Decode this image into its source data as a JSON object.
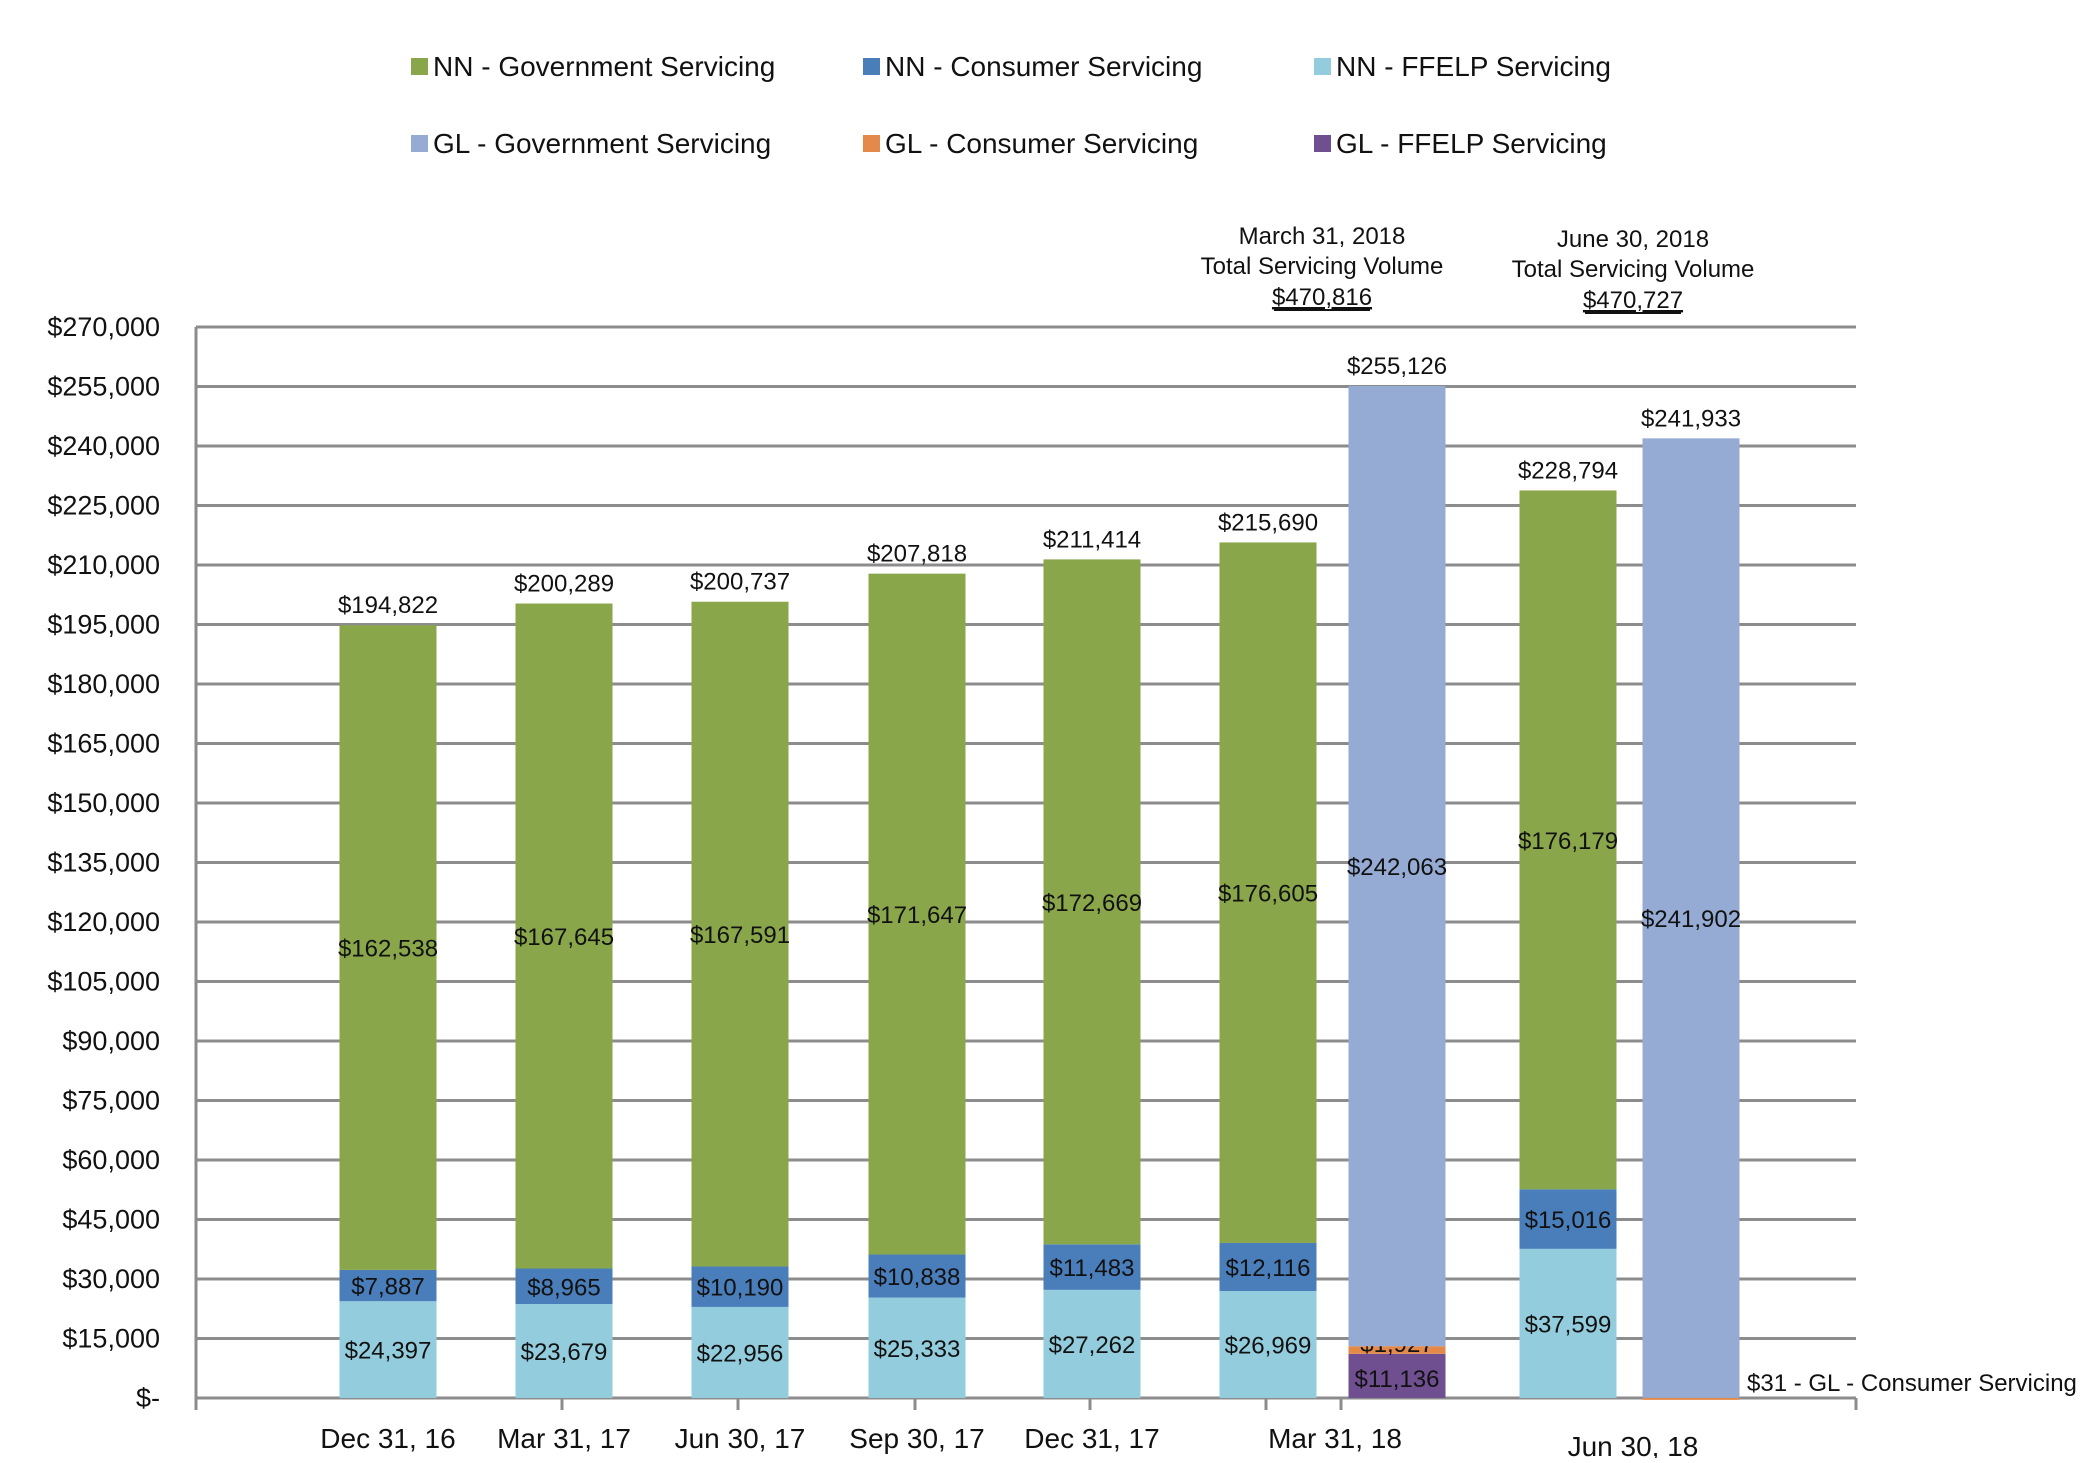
{
  "chart_data": {
    "type": "bar",
    "stacked": true,
    "title": "",
    "xlabel": "",
    "ylabel": "",
    "ylim": [
      0,
      270000
    ],
    "yticks": [
      0,
      15000,
      30000,
      45000,
      60000,
      75000,
      90000,
      105000,
      120000,
      135000,
      150000,
      165000,
      180000,
      195000,
      210000,
      225000,
      240000,
      255000,
      270000
    ],
    "ytick_labels": [
      "$-",
      "$15,000",
      "$30,000",
      "$45,000",
      "$60,000",
      "$75,000",
      "$90,000",
      "$105,000",
      "$120,000",
      "$135,000",
      "$150,000",
      "$165,000",
      "$180,000",
      "$195,000",
      "$210,000",
      "$225,000",
      "$240,000",
      "$255,000",
      "$270,000"
    ],
    "grid": true,
    "legend_placement": "top",
    "legend": [
      {
        "key": "nn_gov",
        "name": "NN - Government Servicing",
        "color": "#8aa64b"
      },
      {
        "key": "nn_con",
        "name": "NN - Consumer Servicing",
        "color": "#4a7ebb"
      },
      {
        "key": "nn_ffelp",
        "name": "NN - FFELP Servicing",
        "color": "#93cddd"
      },
      {
        "key": "gl_gov",
        "name": "GL - Government Servicing",
        "color": "#95abd3"
      },
      {
        "key": "gl_con",
        "name": "GL - Consumer Servicing",
        "color": "#e3894a"
      },
      {
        "key": "gl_ffelp",
        "name": "GL - FFELP Servicing",
        "color": "#6f4f8f"
      }
    ],
    "categories": [
      "Dec 31, 16",
      "Mar 31, 17",
      "Jun 30, 17",
      "Sep 30, 17",
      "Dec 31, 17",
      "Mar 31, 18",
      "Jun 30, 18"
    ],
    "bars": [
      {
        "category": "Dec 31, 16",
        "total": 194822,
        "total_label": "$194,822",
        "segments": [
          {
            "key": "nn_ffelp",
            "value": 24397,
            "label": "$24,397"
          },
          {
            "key": "nn_con",
            "value": 7887,
            "label": "$7,887"
          },
          {
            "key": "nn_gov",
            "value": 162538,
            "label": "$162,538"
          }
        ]
      },
      {
        "category": "Mar 31, 17",
        "total": 200289,
        "total_label": "$200,289",
        "segments": [
          {
            "key": "nn_ffelp",
            "value": 23679,
            "label": "$23,679"
          },
          {
            "key": "nn_con",
            "value": 8965,
            "label": "$8,965"
          },
          {
            "key": "nn_gov",
            "value": 167645,
            "label": "$167,645"
          }
        ]
      },
      {
        "category": "Jun 30, 17",
        "total": 200737,
        "total_label": "$200,737",
        "segments": [
          {
            "key": "nn_ffelp",
            "value": 22956,
            "label": "$22,956"
          },
          {
            "key": "nn_con",
            "value": 10190,
            "label": "$10,190"
          },
          {
            "key": "nn_gov",
            "value": 167591,
            "label": "$167,591"
          }
        ]
      },
      {
        "category": "Sep 30, 17",
        "total": 207818,
        "total_label": "$207,818",
        "segments": [
          {
            "key": "nn_ffelp",
            "value": 25333,
            "label": "$25,333"
          },
          {
            "key": "nn_con",
            "value": 10838,
            "label": "$10,838"
          },
          {
            "key": "nn_gov",
            "value": 171647,
            "label": "$171,647"
          }
        ]
      },
      {
        "category": "Dec 31, 17",
        "total": 211414,
        "total_label": "$211,414",
        "segments": [
          {
            "key": "nn_ffelp",
            "value": 27262,
            "label": "$27,262"
          },
          {
            "key": "nn_con",
            "value": 11483,
            "label": "$11,483"
          },
          {
            "key": "nn_gov",
            "value": 172669,
            "label": "$172,669"
          }
        ]
      },
      {
        "category": "Mar 31, 18",
        "total": 215690,
        "total_label": "$215,690",
        "segments": [
          {
            "key": "nn_ffelp",
            "value": 26969,
            "label": "$26,969"
          },
          {
            "key": "nn_con",
            "value": 12116,
            "label": "$12,116"
          },
          {
            "key": "nn_gov",
            "value": 176605,
            "label": "$176,605"
          }
        ]
      },
      {
        "category": "Mar 31, 18",
        "total": 255126,
        "total_label": "$255,126",
        "segments": [
          {
            "key": "gl_ffelp",
            "value": 11136,
            "label": "$11,136"
          },
          {
            "key": "gl_con",
            "value": 1927,
            "label": "$1,927"
          },
          {
            "key": "gl_gov",
            "value": 242063,
            "label": "$242,063"
          }
        ]
      },
      {
        "category": "Jun 30, 18",
        "total": 228794,
        "total_label": "$228,794",
        "segments": [
          {
            "key": "nn_ffelp",
            "value": 37599,
            "label": "$37,599"
          },
          {
            "key": "nn_con",
            "value": 15016,
            "label": "$15,016"
          },
          {
            "key": "nn_gov",
            "value": 176179,
            "label": "$176,179"
          }
        ]
      },
      {
        "category": "Jun 30, 18",
        "total": 241933,
        "total_label": "$241,933",
        "segments": [
          {
            "key": "gl_con",
            "value": 31,
            "label": ""
          },
          {
            "key": "gl_gov",
            "value": 241902,
            "label": "$241,902"
          }
        ]
      }
    ],
    "annotations": [
      {
        "lines": [
          "March 31, 2018",
          "Total Servicing Volume"
        ],
        "value": "$470,816",
        "category": "Mar 31, 18"
      },
      {
        "lines": [
          "June 30, 2018",
          "Total Servicing Volume"
        ],
        "value": "$470,727",
        "category": "Jun 30, 18"
      }
    ],
    "side_note": "$31 - GL - Consumer Servicing"
  }
}
